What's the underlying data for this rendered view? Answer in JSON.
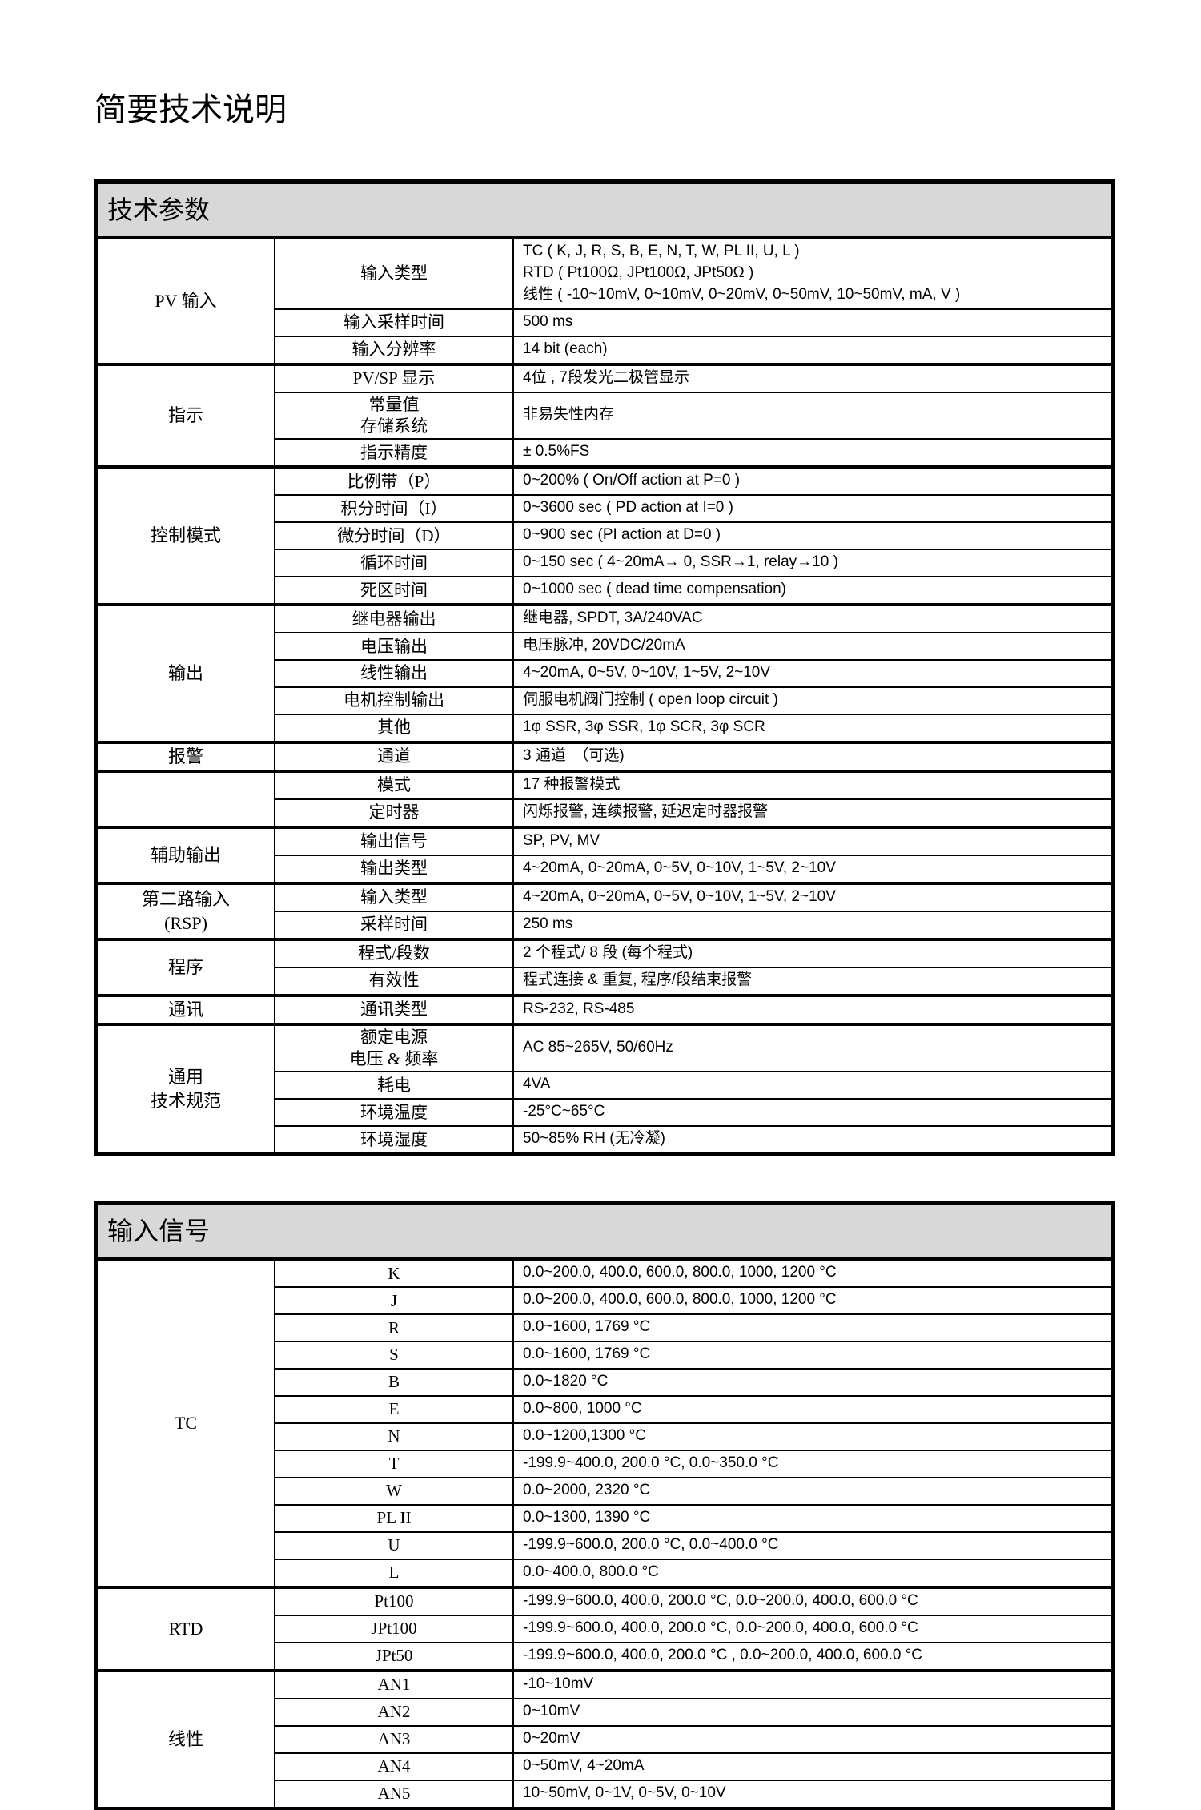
{
  "page_title": "简要技术说明",
  "colors": {
    "header_bg": "#d8d8d8",
    "border": "#000000",
    "text": "#000000",
    "page_bg": "#ffffff"
  },
  "tables": [
    {
      "id": "tech-params",
      "header": "技术参数",
      "groups": [
        {
          "label": [
            "PV 输入"
          ],
          "rows": [
            {
              "param": [
                "输入类型"
              ],
              "value": [
                "TC ( K, J, R, S, B, E, N, T, W, PL II, U, L )",
                "RTD ( Pt100Ω, JPt100Ω, JPt50Ω )",
                "线性 ( -10~10mV, 0~10mV, 0~20mV, 0~50mV, 10~50mV, mA, V )"
              ]
            },
            {
              "param": [
                "输入采样时间"
              ],
              "value": [
                "500 ms"
              ]
            },
            {
              "param": [
                "输入分辨率"
              ],
              "value": [
                "14 bit (each)"
              ]
            }
          ]
        },
        {
          "label": [
            "指示"
          ],
          "rows": [
            {
              "param": [
                "PV/SP 显示"
              ],
              "value": [
                "4位 , 7段发光二极管显示"
              ]
            },
            {
              "param": [
                "常量值",
                "存储系统"
              ],
              "value": [
                "非易失性内存"
              ]
            },
            {
              "param": [
                "指示精度"
              ],
              "value": [
                "± 0.5%FS"
              ]
            }
          ]
        },
        {
          "label": [
            "控制模式"
          ],
          "rows": [
            {
              "param": [
                "比例带（P）"
              ],
              "value": [
                "0~200% ( On/Off action at  P=0 )"
              ]
            },
            {
              "param": [
                "积分时间（I）"
              ],
              "value": [
                "0~3600 sec ( PD action at I=0 )"
              ]
            },
            {
              "param": [
                "微分时间（D）"
              ],
              "value": [
                "0~900 sec (PI action at D=0 )"
              ]
            },
            {
              "param": [
                "循环时间"
              ],
              "value": [
                "0~150 sec ( 4~20mA→ 0, SSR→1, relay→10 )"
              ]
            },
            {
              "param": [
                "死区时间"
              ],
              "value": [
                "0~1000 sec ( dead time compensation)"
              ]
            }
          ]
        },
        {
          "label": [
            "输出"
          ],
          "rows": [
            {
              "param": [
                "继电器输出"
              ],
              "value": [
                "继电器, SPDT, 3A/240VAC"
              ]
            },
            {
              "param": [
                "电压输出"
              ],
              "value": [
                "电压脉冲, 20VDC/20mA"
              ]
            },
            {
              "param": [
                "线性输出"
              ],
              "value": [
                "4~20mA, 0~5V, 0~10V, 1~5V, 2~10V"
              ]
            },
            {
              "param": [
                "电机控制输出"
              ],
              "value": [
                "伺服电机阀门控制 ( open loop circuit )"
              ]
            },
            {
              "param": [
                "其他"
              ],
              "value": [
                "1φ SSR, 3φ SSR, 1φ SCR, 3φ SCR"
              ]
            }
          ]
        },
        {
          "label": [
            "报警"
          ],
          "rows": [
            {
              "param": [
                "通道"
              ],
              "value": [
                "3 通道　（可选)"
              ]
            }
          ]
        },
        {
          "label": [
            ""
          ],
          "rows": [
            {
              "param": [
                "模式"
              ],
              "value": [
                "17 种报警模式"
              ]
            },
            {
              "param": [
                "定时器"
              ],
              "value": [
                "闪烁报警, 连续报警, 延迟定时器报警"
              ]
            }
          ]
        },
        {
          "label": [
            "辅助输出"
          ],
          "rows": [
            {
              "param": [
                "输出信号"
              ],
              "value": [
                "SP, PV, MV"
              ]
            },
            {
              "param": [
                "输出类型"
              ],
              "value": [
                "4~20mA, 0~20mA, 0~5V, 0~10V, 1~5V, 2~10V"
              ]
            }
          ]
        },
        {
          "label": [
            "第二路输入",
            "(RSP)"
          ],
          "rows": [
            {
              "param": [
                "输入类型"
              ],
              "value": [
                "4~20mA, 0~20mA, 0~5V, 0~10V, 1~5V, 2~10V"
              ]
            },
            {
              "param": [
                "采样时间"
              ],
              "value": [
                "250 ms"
              ]
            }
          ]
        },
        {
          "label": [
            "程序"
          ],
          "rows": [
            {
              "param": [
                "程式/段数"
              ],
              "value": [
                "2 个程式/ 8 段 (每个程式)"
              ]
            },
            {
              "param": [
                "有效性"
              ],
              "value": [
                "程式连接 & 重复, 程序/段结束报警"
              ]
            }
          ]
        },
        {
          "label": [
            "通讯"
          ],
          "rows": [
            {
              "param": [
                "通讯类型"
              ],
              "value": [
                "RS-232, RS-485"
              ]
            }
          ]
        },
        {
          "label": [
            "通用",
            "技术规范"
          ],
          "rows": [
            {
              "param": [
                "额定电源",
                "电压 & 频率"
              ],
              "value": [
                "AC 85~265V, 50/60Hz"
              ]
            },
            {
              "param": [
                "耗电"
              ],
              "value": [
                "4VA"
              ]
            },
            {
              "param": [
                "环境温度"
              ],
              "value": [
                "-25°C~65°C"
              ]
            },
            {
              "param": [
                "环境湿度"
              ],
              "value": [
                "50~85% RH (无冷凝)"
              ]
            }
          ]
        }
      ]
    },
    {
      "id": "input-signals",
      "header": "输入信号",
      "groups": [
        {
          "label": [
            "TC"
          ],
          "rows": [
            {
              "param": [
                "K"
              ],
              "value": [
                "0.0~200.0, 400.0, 600.0, 800.0, 1000, 1200 °C"
              ]
            },
            {
              "param": [
                "J"
              ],
              "value": [
                "0.0~200.0, 400.0, 600.0, 800.0, 1000, 1200 °C"
              ]
            },
            {
              "param": [
                "R"
              ],
              "value": [
                "0.0~1600, 1769 °C"
              ]
            },
            {
              "param": [
                "S"
              ],
              "value": [
                "0.0~1600, 1769 °C"
              ]
            },
            {
              "param": [
                "B"
              ],
              "value": [
                "0.0~1820 °C"
              ]
            },
            {
              "param": [
                "E"
              ],
              "value": [
                "0.0~800, 1000 °C"
              ]
            },
            {
              "param": [
                "N"
              ],
              "value": [
                "0.0~1200,1300 °C"
              ]
            },
            {
              "param": [
                "T"
              ],
              "value": [
                "-199.9~400.0, 200.0 °C, 0.0~350.0 °C"
              ]
            },
            {
              "param": [
                "W"
              ],
              "value": [
                "0.0~2000, 2320 °C"
              ]
            },
            {
              "param": [
                "PL II"
              ],
              "value": [
                "0.0~1300, 1390 °C"
              ]
            },
            {
              "param": [
                "U"
              ],
              "value": [
                "-199.9~600.0, 200.0 °C, 0.0~400.0 °C"
              ]
            },
            {
              "param": [
                "L"
              ],
              "value": [
                "0.0~400.0, 800.0 °C"
              ]
            }
          ]
        },
        {
          "label": [
            "RTD"
          ],
          "rows": [
            {
              "param": [
                "Pt100"
              ],
              "value": [
                "-199.9~600.0, 400.0, 200.0 °C, 0.0~200.0, 400.0, 600.0 °C"
              ]
            },
            {
              "param": [
                "JPt100"
              ],
              "value": [
                "-199.9~600.0, 400.0, 200.0 °C, 0.0~200.0, 400.0, 600.0 °C"
              ]
            },
            {
              "param": [
                "JPt50"
              ],
              "value": [
                "-199.9~600.0, 400.0, 200.0 °C , 0.0~200.0, 400.0, 600.0 °C"
              ]
            }
          ]
        },
        {
          "label": [
            "线性"
          ],
          "rows": [
            {
              "param": [
                "AN1"
              ],
              "value": [
                "-10~10mV"
              ]
            },
            {
              "param": [
                "AN2"
              ],
              "value": [
                "0~10mV"
              ]
            },
            {
              "param": [
                "AN3"
              ],
              "value": [
                "0~20mV"
              ]
            },
            {
              "param": [
                "AN4"
              ],
              "value": [
                "0~50mV, 4~20mA"
              ]
            },
            {
              "param": [
                "AN5"
              ],
              "value": [
                "10~50mV, 0~1V, 0~5V, 0~10V"
              ]
            }
          ]
        }
      ]
    }
  ]
}
